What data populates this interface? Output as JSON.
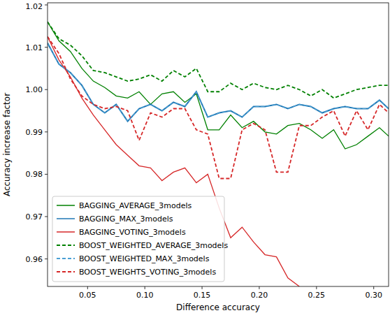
{
  "chart_data": {
    "type": "line",
    "x_label": "Difference accuracy",
    "y_label": "Accuracy increase factor",
    "x": [
      0.015,
      0.025,
      0.035,
      0.045,
      0.055,
      0.065,
      0.075,
      0.085,
      0.095,
      0.105,
      0.115,
      0.125,
      0.135,
      0.145,
      0.155,
      0.165,
      0.175,
      0.185,
      0.195,
      0.205,
      0.215,
      0.225,
      0.235,
      0.245,
      0.255,
      0.265,
      0.275,
      0.285,
      0.295,
      0.305,
      0.313
    ],
    "xlim": [
      0.015,
      0.313
    ],
    "ylim": [
      0.9535,
      1.0205
    ],
    "xticks": [
      0.05,
      {
        "value": 0.1,
        "label": "0.10"
      },
      0.15,
      {
        "value": 0.2,
        "label": "0.20"
      },
      0.25,
      {
        "value": 0.3,
        "label": "0.30"
      }
    ],
    "yticks": [
      0.96,
      0.97,
      0.98,
      0.99,
      {
        "value": 1,
        "label": "1.00"
      },
      1.01,
      1.02
    ],
    "grid": false,
    "legend": "lower left",
    "series": [
      {
        "name": "BAGGING_AVERAGE_3models",
        "color": "#008000",
        "line_style": "solid",
        "values": [
          1.016,
          1.0115,
          1.009,
          1.005,
          1.002,
          1.0005,
          0.9985,
          0.998,
          0.9995,
          0.9965,
          0.999,
          0.9995,
          0.997,
          0.999,
          0.9905,
          0.9905,
          0.994,
          0.991,
          0.9925,
          0.99,
          0.9895,
          0.9915,
          0.992,
          0.9905,
          0.9885,
          0.9905,
          0.986,
          0.987,
          0.989,
          0.991,
          0.989
        ]
      },
      {
        "name": "BAGGING_MAX_3models",
        "color": "#1f77b4",
        "line_style": "solid",
        "values": [
          1.011,
          1.006,
          1.004,
          1.001,
          0.9965,
          0.9945,
          0.9965,
          0.9925,
          0.9955,
          0.9965,
          0.995,
          0.997,
          0.996,
          0.9995,
          0.9935,
          0.9945,
          0.995,
          0.9935,
          0.996,
          0.996,
          0.9965,
          0.9955,
          0.9965,
          0.996,
          0.9945,
          0.9955,
          0.996,
          0.9955,
          0.9955,
          0.9975,
          0.9955
        ]
      },
      {
        "name": "BAGGING_VOTING_3models",
        "color": "#d62728",
        "line_style": "solid",
        "values": [
          1.0125,
          1.007,
          1.003,
          0.998,
          0.994,
          0.9905,
          0.987,
          0.9845,
          0.982,
          0.9815,
          0.9785,
          0.9805,
          0.9815,
          0.978,
          0.98,
          0.972,
          0.965,
          0.9675,
          0.964,
          0.961,
          0.9605,
          0.9555,
          0.9535,
          null,
          null,
          null,
          null,
          null,
          null,
          null,
          null
        ]
      },
      {
        "name": "BOOST_WEIGHTED_AVERAGE_3models",
        "color": "#008000",
        "line_style": "dashed",
        "values": [
          1.016,
          1.012,
          1.0105,
          1.008,
          1.0045,
          1.004,
          1.003,
          1.002,
          1.0025,
          1.0035,
          1.002,
          1.0045,
          1.003,
          1.005,
          0.9995,
          0.9995,
          1.0015,
          1.0,
          1.0015,
          1.0005,
          1.0,
          1.001,
          1.0,
          0.9985,
          1.0,
          0.998,
          0.999,
          1.0,
          1.0005,
          1.001,
          1.001
        ]
      },
      {
        "name": "BOOST_WEIGHTED_MAX_3models",
        "color": "#4a9fd4",
        "line_style": "dashed",
        "values": [
          1.011,
          1.006,
          1.004,
          1.001,
          0.9965,
          0.9945,
          0.9965,
          0.9925,
          0.9955,
          0.9965,
          0.995,
          0.997,
          0.996,
          0.9995,
          0.9935,
          0.9945,
          0.995,
          0.9935,
          0.996,
          0.996,
          0.9965,
          0.9955,
          0.9965,
          0.996,
          0.9945,
          0.9955,
          0.996,
          0.9955,
          0.9955,
          0.9975,
          0.9955
        ]
      },
      {
        "name": "BOOST_WEIGHTS_VOTING_3models",
        "color": "#d62728",
        "line_style": "dashed",
        "values": [
          1.0125,
          1.0085,
          1.0025,
          0.9985,
          0.9965,
          0.9955,
          0.996,
          0.995,
          0.988,
          0.9945,
          0.9935,
          0.9955,
          0.9955,
          0.9905,
          0.9895,
          0.979,
          0.979,
          0.9905,
          0.992,
          0.9905,
          0.9805,
          0.9805,
          0.9915,
          0.9915,
          0.9935,
          0.995,
          0.989,
          0.995,
          0.9905,
          0.9965,
          0.9945
        ]
      }
    ]
  }
}
